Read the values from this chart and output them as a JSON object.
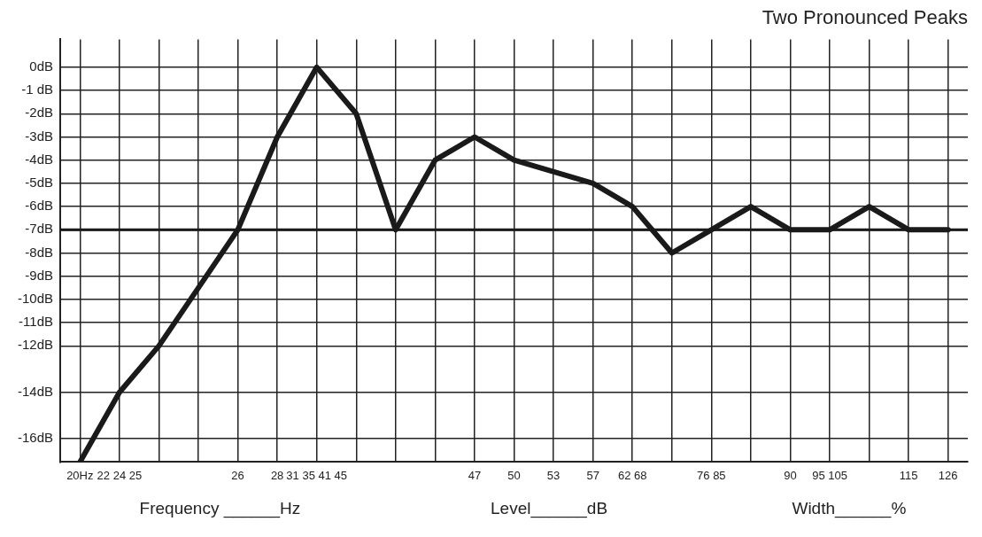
{
  "chart_data": {
    "type": "line",
    "title": "Two Pronounced Peaks",
    "categories": [
      "20Hz",
      "22 24 25",
      null,
      null,
      "26",
      "28",
      "31 35 41 45",
      null,
      null,
      null,
      "47",
      "50",
      "53",
      "57",
      "62 68",
      null,
      "76 85",
      null,
      "90",
      "95 105",
      null,
      "115",
      "126"
    ],
    "series": [
      {
        "color": "#1a1a1a",
        "values": [
          -17,
          -14,
          -12,
          -9.5,
          -7,
          -3,
          0,
          -2,
          -7,
          -4,
          -3,
          -4,
          null,
          -5,
          -6,
          -8,
          -7,
          -6,
          -7,
          -7,
          -6,
          -7,
          -7
        ]
      }
    ],
    "ylim": [
      -17,
      1.2
    ],
    "yticks": [
      {
        "value": 0,
        "label": "0dB"
      },
      {
        "value": -1,
        "label": "-1 dB"
      },
      {
        "value": -2,
        "label": "-2dB"
      },
      {
        "value": -3,
        "label": "-3dB"
      },
      {
        "value": -4,
        "label": "-4dB"
      },
      {
        "value": -5,
        "label": "-5dB"
      },
      {
        "value": -6,
        "label": "-6dB"
      },
      {
        "value": -7,
        "label": "-7dB"
      },
      {
        "value": -8,
        "label": "-8dB"
      },
      {
        "value": -9,
        "label": "-9dB"
      },
      {
        "value": -10,
        "label": "-10dB"
      },
      {
        "value": -11,
        "label": "-11dB"
      },
      {
        "value": -12,
        "label": "-12dB"
      },
      {
        "value": -14,
        "label": "-14dB"
      },
      {
        "value": -16,
        "label": "-16dB"
      }
    ],
    "ref_lines": [
      {
        "axis": "y",
        "value": -7,
        "label": null,
        "color": "#1a1a1a"
      }
    ],
    "grid": true,
    "legend": false,
    "marker": "none",
    "line_style": "solid",
    "annotations": [
      "Frequency ______Hz",
      "Level______dB",
      "Width______%"
    ]
  }
}
